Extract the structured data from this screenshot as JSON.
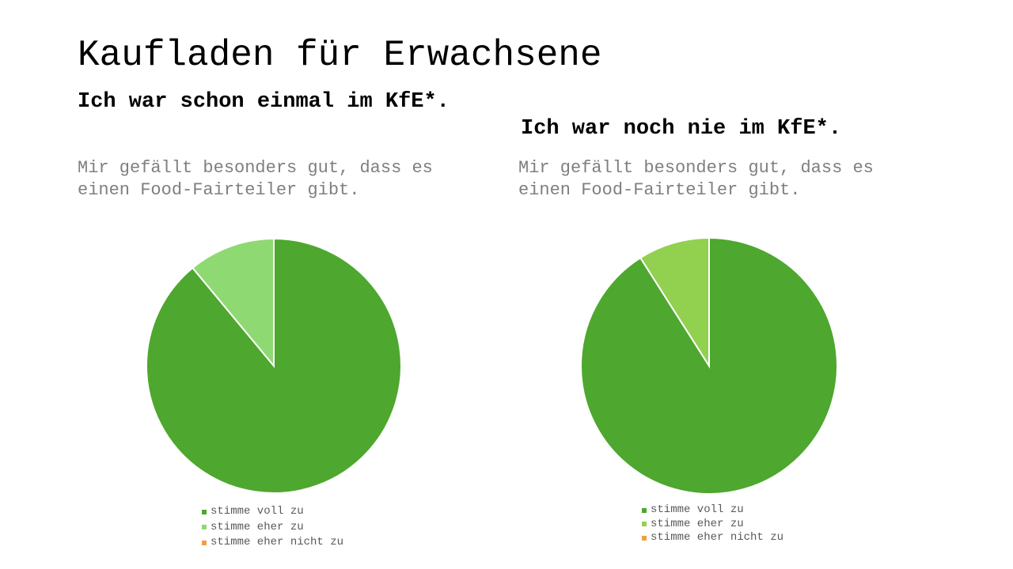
{
  "slide_title": "Kaufladen für Erwachsene",
  "chart_data": [
    {
      "type": "pie",
      "title": "Ich war schon einmal im KfE*.",
      "subtitle": "Mir gefällt besonders gut, dass es einen Food-Fairteiler gibt.",
      "categories": [
        "stimme voll zu",
        "stimme eher zu",
        "stimme eher nicht zu"
      ],
      "values": [
        89,
        11,
        0
      ],
      "colors": [
        "#4EA72E",
        "#8FD973",
        "#F0A040"
      ],
      "legend": "bottom"
    },
    {
      "type": "pie",
      "title": "Ich war noch nie im KfE*.",
      "subtitle": "Mir gefällt besonders gut, dass es einen Food-Fairteiler gibt.",
      "categories": [
        "stimme voll zu",
        "stimme eher zu",
        "stimme eher nicht zu"
      ],
      "values": [
        91,
        9,
        0
      ],
      "colors": [
        "#4EA72E",
        "#92D050",
        "#F0A040"
      ],
      "legend": "bottom"
    }
  ]
}
